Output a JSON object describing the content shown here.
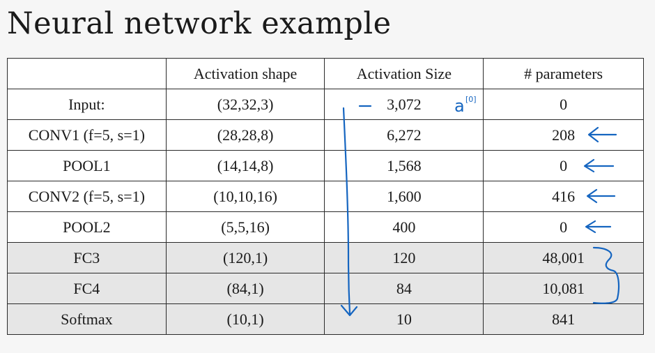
{
  "title": "Neural network example",
  "table": {
    "headers": [
      "",
      "Activation shape",
      "Activation Size",
      "# parameters"
    ],
    "rows": [
      {
        "layer": "Input:",
        "shape": "(32,32,3)",
        "size": "3,072",
        "params": "0"
      },
      {
        "layer": "CONV1 (f=5, s=1)",
        "shape": "(28,28,8)",
        "size": "6,272",
        "params": "208"
      },
      {
        "layer": "POOL1",
        "shape": "(14,14,8)",
        "size": "1,568",
        "params": "0"
      },
      {
        "layer": "CONV2  (f=5, s=1)",
        "shape": "(10,10,16)",
        "size": "1,600",
        "params": "416"
      },
      {
        "layer": "POOL2",
        "shape": "(5,5,16)",
        "size": "400",
        "params": "0"
      },
      {
        "layer": "FC3",
        "shape": "(120,1)",
        "size": "120",
        "params": "48,001"
      },
      {
        "layer": "FC4",
        "shape": "(84,1)",
        "size": "84",
        "params": "10,081"
      },
      {
        "layer": "Softmax",
        "shape": "(10,1)",
        "size": "10",
        "params": "841"
      }
    ]
  },
  "annotations": {
    "input_label": "a",
    "input_superscript": "[0]",
    "ink_color": "#1565c0"
  }
}
